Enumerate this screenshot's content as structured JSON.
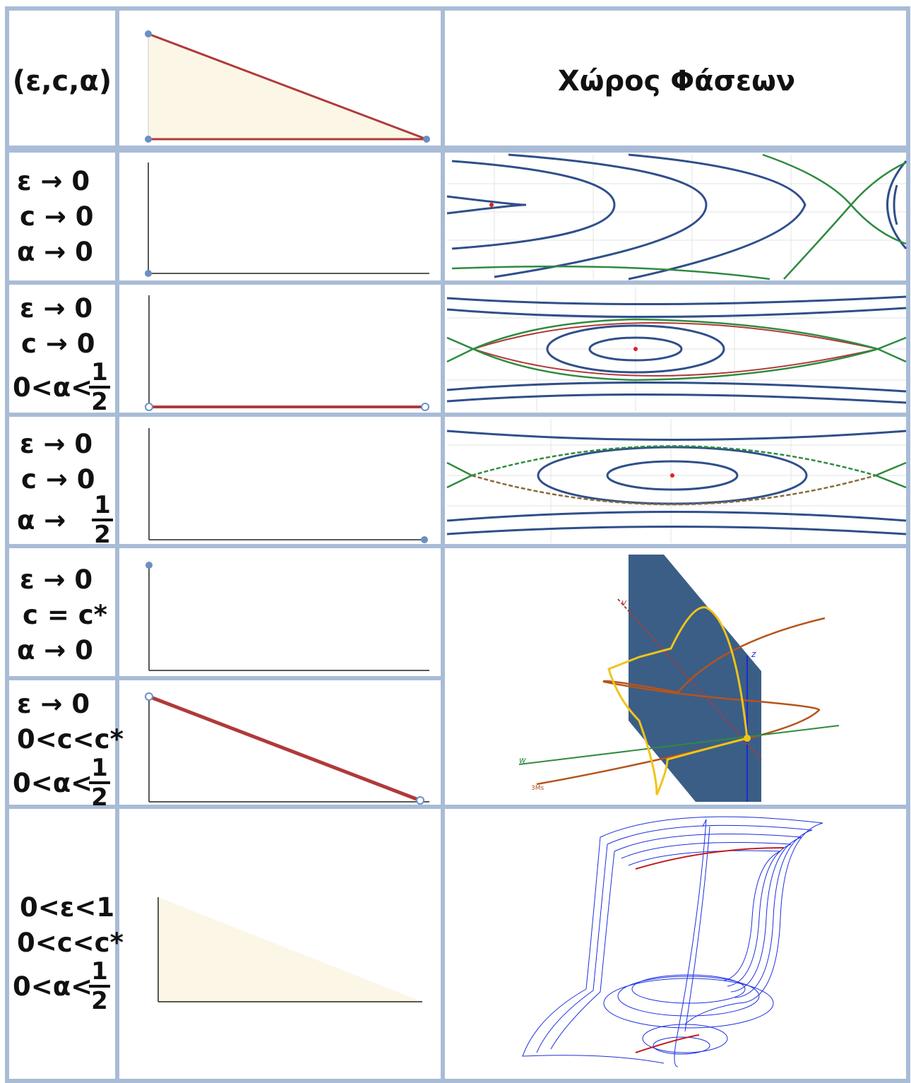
{
  "header": {
    "params_label": "(ε,c,α)",
    "phase_space_label": "Χώρος Φάσεων"
  },
  "rows": [
    {
      "lines": [
        "ε → 0",
        "c → 0",
        "α → 0"
      ]
    },
    {
      "lines": [
        "ε → 0",
        "c → 0",
        "0<α<"
      ],
      "fraction": {
        "num": "1",
        "den": "2"
      }
    },
    {
      "lines": [
        "ε → 0",
        "c → 0",
        "α →"
      ],
      "fraction": {
        "num": "1",
        "den": "2"
      }
    },
    {
      "lines": [
        "ε → 0",
        "c  = c*",
        "α → 0"
      ]
    },
    {
      "lines": [
        "ε → 0",
        "0<c<c*",
        "0<α<"
      ],
      "fraction": {
        "num": "1",
        "den": "2"
      }
    },
    {
      "lines": [
        "0<ε<1",
        "0<c<c*",
        "0<α<"
      ],
      "fraction": {
        "num": "1",
        "den": "2"
      }
    }
  ],
  "axis_3d_labels": {
    "v": "v",
    "z": "z",
    "w": "w",
    "m": "3Ms"
  },
  "colors": {
    "grid": "#a9bcd6",
    "triangle_fill": "#fbf6e6",
    "red_edge": "#b03a3a",
    "marker": "#6a8fc3",
    "blue_orbit": "#2f4f8a",
    "green_separatrix": "#2e8b3f",
    "plane": "#3b5e86",
    "yellow_orbit": "#f0c419",
    "brown_curve": "#b5541c",
    "attractor_blue": "#1a2fe0"
  }
}
